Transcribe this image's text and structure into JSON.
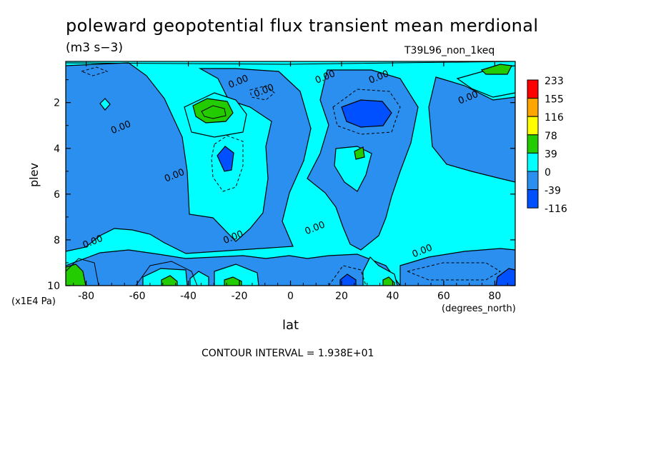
{
  "title": "poleward geopotential flux transient mean merdional",
  "units": "(m3 s−3)",
  "run_id": "T39L96_non_1keq",
  "contour_interval": "CONTOUR INTERVAL = 1.938E+01",
  "chart_data": {
    "type": "heatmap",
    "xlabel": "lat",
    "xunit": "(degrees_north)",
    "ylabel": "plev",
    "yunit": "(x1E4 Pa)",
    "xlim": [
      -88,
      88
    ],
    "ylim": [
      10,
      0.2
    ],
    "x_ticks": [
      -80,
      -60,
      -40,
      -20,
      0,
      20,
      40,
      60,
      80
    ],
    "y_ticks": [
      2,
      4,
      6,
      8,
      10
    ],
    "legend": {
      "placement": "right",
      "levels": [
        "233",
        "155",
        "116",
        "78",
        "39",
        "0",
        "-39",
        "-116"
      ],
      "colors": [
        "#ff0000",
        "#ffa500",
        "#ffff00",
        "#22cc00",
        "#00ffff",
        "#2b8fef",
        "#0050ff"
      ]
    },
    "contour_labels": [
      {
        "x": -20,
        "y": 1.2,
        "text": "0.00"
      },
      {
        "x": -10,
        "y": 1.6,
        "text": "0.00"
      },
      {
        "x": 14,
        "y": 1.0,
        "text": "0.00"
      },
      {
        "x": 35,
        "y": 1.0,
        "text": "0.00"
      },
      {
        "x": 70,
        "y": 1.9,
        "text": "0.00"
      },
      {
        "x": -66,
        "y": 3.2,
        "text": "0.00"
      },
      {
        "x": -45,
        "y": 5.3,
        "text": "0.00"
      },
      {
        "x": 10,
        "y": 7.6,
        "text": "0.00"
      },
      {
        "x": -22,
        "y": 8.0,
        "text": "0.00"
      },
      {
        "x": -77,
        "y": 8.2,
        "text": "0.00"
      },
      {
        "x": 52,
        "y": 8.6,
        "text": "0.00"
      }
    ]
  }
}
